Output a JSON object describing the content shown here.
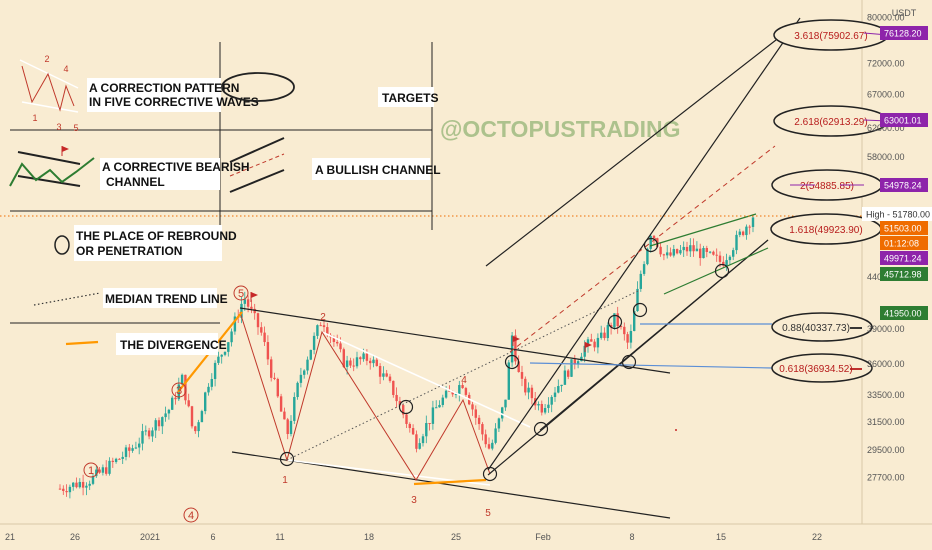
{
  "chart_data": {
    "type": "candlestick",
    "currency": "USDT",
    "watermark": "@OCTOPUSTRADING",
    "y_scale": "log",
    "ylim": [
      26000,
      82000
    ],
    "x_ticks": [
      "21",
      "26",
      "2021",
      "6",
      "11",
      "18",
      "25",
      "Feb",
      "8",
      "15",
      "22"
    ],
    "y_ticks": [
      {
        "value": 80000,
        "label": "80000.00"
      },
      {
        "value": 72000,
        "label": "72000.00"
      },
      {
        "value": 67000,
        "label": "67000.00"
      },
      {
        "value": 62000,
        "label": "62000.00"
      },
      {
        "value": 58000,
        "label": "58000.00"
      },
      {
        "value": 44000,
        "label": "44000.00"
      },
      {
        "value": 39000,
        "label": "39000.00"
      },
      {
        "value": 36000,
        "label": "36000.00"
      },
      {
        "value": 33500,
        "label": "33500.00"
      },
      {
        "value": 31500,
        "label": "31500.00"
      },
      {
        "value": 29500,
        "label": "29500.00"
      },
      {
        "value": 27700,
        "label": "27700.00"
      }
    ],
    "price_tags": [
      {
        "value": 76128.2,
        "label": "76128.20",
        "color": "#8e24aa",
        "text_color": "#ffffff"
      },
      {
        "value": 63001.01,
        "label": "63001.01",
        "color": "#8e24aa",
        "text_color": "#ffffff"
      },
      {
        "value": 54978.24,
        "label": "54978.24",
        "color": "#8e24aa",
        "text_color": "#ffffff"
      },
      {
        "value": 51780,
        "label": "High - 51780.00",
        "color": "#ffffff",
        "text_color": "#333333"
      },
      {
        "value": 51503.0,
        "label": "51503.00",
        "color": "#ef6c00",
        "text_color": "#ffffff"
      },
      {
        "value": 50800,
        "label": "01:12:08",
        "color": "#ef6c00",
        "text_color": "#ffffff"
      },
      {
        "value": 49971.24,
        "label": "49971.24",
        "color": "#8e24aa",
        "text_color": "#ffffff"
      },
      {
        "value": 45712.98,
        "label": "45712.98",
        "color": "#2e7d32",
        "text_color": "#ffffff"
      },
      {
        "value": 41950.0,
        "label": "41950.00",
        "color": "#2e7d32",
        "text_color": "#ffffff"
      }
    ],
    "fib_targets": [
      {
        "label": "3.618(75902.67)",
        "color": "#b71c1c"
      },
      {
        "label": "2.618(62913.29)",
        "color": "#b71c1c"
      },
      {
        "label": "2(54885.85)",
        "color": "#b71c1c"
      },
      {
        "label": "1.618(49923.90)",
        "color": "#b71c1c"
      },
      {
        "label": "0.88(40337.73)",
        "color": "#333333"
      },
      {
        "label": "0.618(36934.52)",
        "color": "#b71c1c"
      }
    ],
    "wave_labels_circled": [
      "1",
      "3",
      "4",
      "5"
    ],
    "wave_labels_plain": [
      "1",
      "2",
      "3",
      "4",
      "5"
    ],
    "colors": {
      "up": "#26a69a",
      "down": "#ef5350",
      "divergence": "#ff9800",
      "fib": "#b71c1c"
    }
  },
  "legend": {
    "row1_text": "A CORRECTION PATTERN IN FIVE CORRECTIVE WAVES",
    "row1_line1": "A CORRECTION PATTERN",
    "row1_line2": "IN FIVE CORRECTIVE WAVES",
    "row1_wave_labels": [
      "1",
      "2",
      "3",
      "4",
      "5"
    ],
    "targets": "TARGETS",
    "row2_line1": "A CORRECTIVE BEARISH",
    "row2_line2": "CHANNEL",
    "bullish_channel": "A BULLISH CHANNEL",
    "rebound_line1": "THE PLACE OF REBROUND",
    "rebound_line2": "OR PENETRATION",
    "median": "MEDIAN TREND LINE",
    "divergence": "THE DIVERGENCE"
  }
}
